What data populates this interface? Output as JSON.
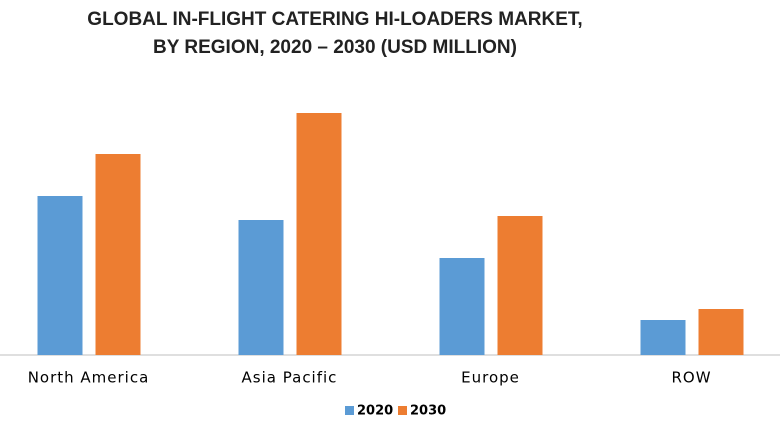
{
  "chart_data": {
    "type": "bar",
    "title": [
      "GLOBAL IN-FLIGHT CATERING HI-LOADERS MARKET,",
      "BY REGION, 2020 – 2030 (USD MILLION)"
    ],
    "categories": [
      "North America",
      "Asia Pacific",
      "Europe",
      "ROW"
    ],
    "series": [
      {
        "name": "2020",
        "color": "#5b9bd5",
        "values": [
          159,
          135,
          97,
          35
        ]
      },
      {
        "name": "2030",
        "color": "#ed7d31",
        "values": [
          201,
          242,
          139,
          46
        ]
      }
    ],
    "ylim": [
      0,
      260
    ],
    "legend": "bottom"
  }
}
